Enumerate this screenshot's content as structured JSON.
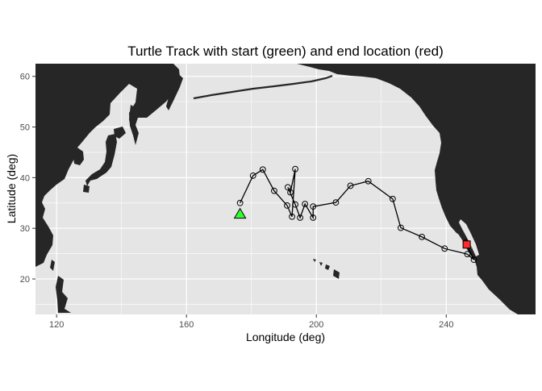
{
  "chart_data": {
    "type": "scatter",
    "title": "Turtle Track with start (green) and end location (red)",
    "xlabel": "Longitude (deg)",
    "ylabel": "Latitude (deg)",
    "xlim": [
      113.5,
      267.5
    ],
    "ylim": [
      13,
      62.5
    ],
    "x_ticks": [
      120,
      160,
      200,
      240
    ],
    "y_ticks": [
      20,
      30,
      40,
      50,
      60
    ],
    "grid": true,
    "legend": "none",
    "colors": {
      "panel": "#e5e5e5",
      "land": "#262626",
      "grid": "#ffffff",
      "track": "#000000",
      "start": "#33ff33",
      "end": "#ff2a2a"
    },
    "series": [
      {
        "points": [
          [
            176.5,
            35.0
          ],
          [
            180.5,
            40.4
          ],
          [
            183.5,
            41.6
          ],
          [
            187.0,
            37.4
          ],
          [
            191.0,
            34.5
          ],
          [
            192.5,
            32.3
          ],
          [
            193.5,
            41.7
          ],
          [
            192.0,
            37.1
          ],
          [
            191.2,
            38.1
          ],
          [
            193.5,
            34.7
          ],
          [
            195.0,
            32.1
          ],
          [
            196.5,
            34.8
          ],
          [
            199.0,
            32.1
          ],
          [
            199.0,
            34.3
          ],
          [
            206.0,
            35.1
          ],
          [
            210.5,
            38.4
          ],
          [
            216.0,
            39.3
          ],
          [
            223.5,
            35.8
          ],
          [
            226.0,
            30.1
          ],
          [
            232.5,
            28.3
          ],
          [
            239.5,
            26.0
          ],
          [
            246.5,
            24.9
          ],
          [
            248.5,
            23.8
          ],
          [
            246.0,
            27.2
          ]
        ]
      }
    ],
    "start": {
      "lon": 176.5,
      "lat": 32.8
    },
    "end": {
      "lon": 246.3,
      "lat": 26.8
    }
  }
}
